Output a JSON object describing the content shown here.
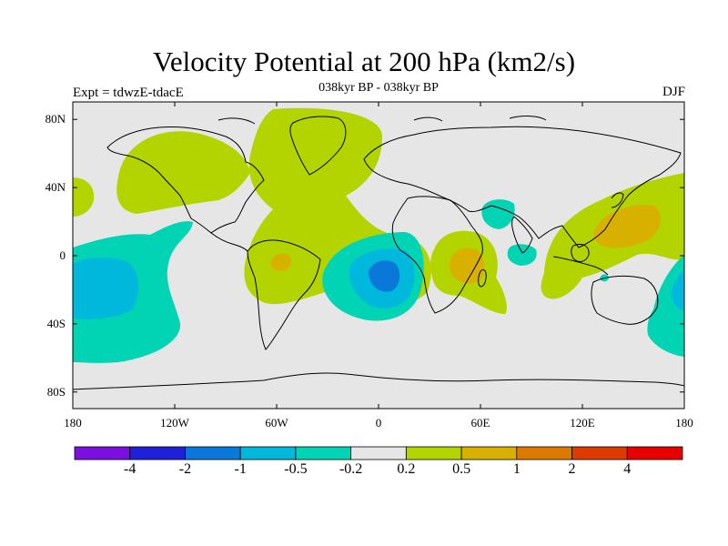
{
  "title": "Velocity Potential at 200 hPa (km2/s)",
  "experiment": "Expt = tdwzE-tdacE",
  "subtitle": "038kyr BP - 038kyr BP",
  "season": "DJF",
  "lat_ticks": [
    {
      "label": "80N",
      "lat": 80
    },
    {
      "label": "40N",
      "lat": 40
    },
    {
      "label": "0",
      "lat": 0
    },
    {
      "label": "40S",
      "lat": -40
    },
    {
      "label": "80S",
      "lat": -80
    }
  ],
  "lon_ticks": [
    {
      "label": "180",
      "lon": -180
    },
    {
      "label": "120W",
      "lon": -120
    },
    {
      "label": "60W",
      "lon": -60
    },
    {
      "label": "0",
      "lon": 0
    },
    {
      "label": "60E",
      "lon": 60
    },
    {
      "label": "120E",
      "lon": 120
    },
    {
      "label": "180",
      "lon": 180
    }
  ],
  "colorbar": {
    "colors": [
      "#7b0fe0",
      "#2020d8",
      "#0a78d8",
      "#00b8dc",
      "#00d4b4",
      "#e6e6e6",
      "#b4d400",
      "#d8b000",
      "#dc7a00",
      "#dc3a00",
      "#e80000"
    ],
    "labels": [
      "-4",
      "-2",
      "-1",
      "-0.5",
      "-0.2",
      "0.2",
      "0.5",
      "1",
      "2",
      "4"
    ]
  },
  "colors": {
    "neutral": "#e6e6e6",
    "pos1": "#b4d400",
    "pos2": "#d8b000",
    "neg1": "#00d4b4",
    "neg2": "#00b8dc",
    "neg3": "#0a78d8",
    "coast": "#000000"
  }
}
